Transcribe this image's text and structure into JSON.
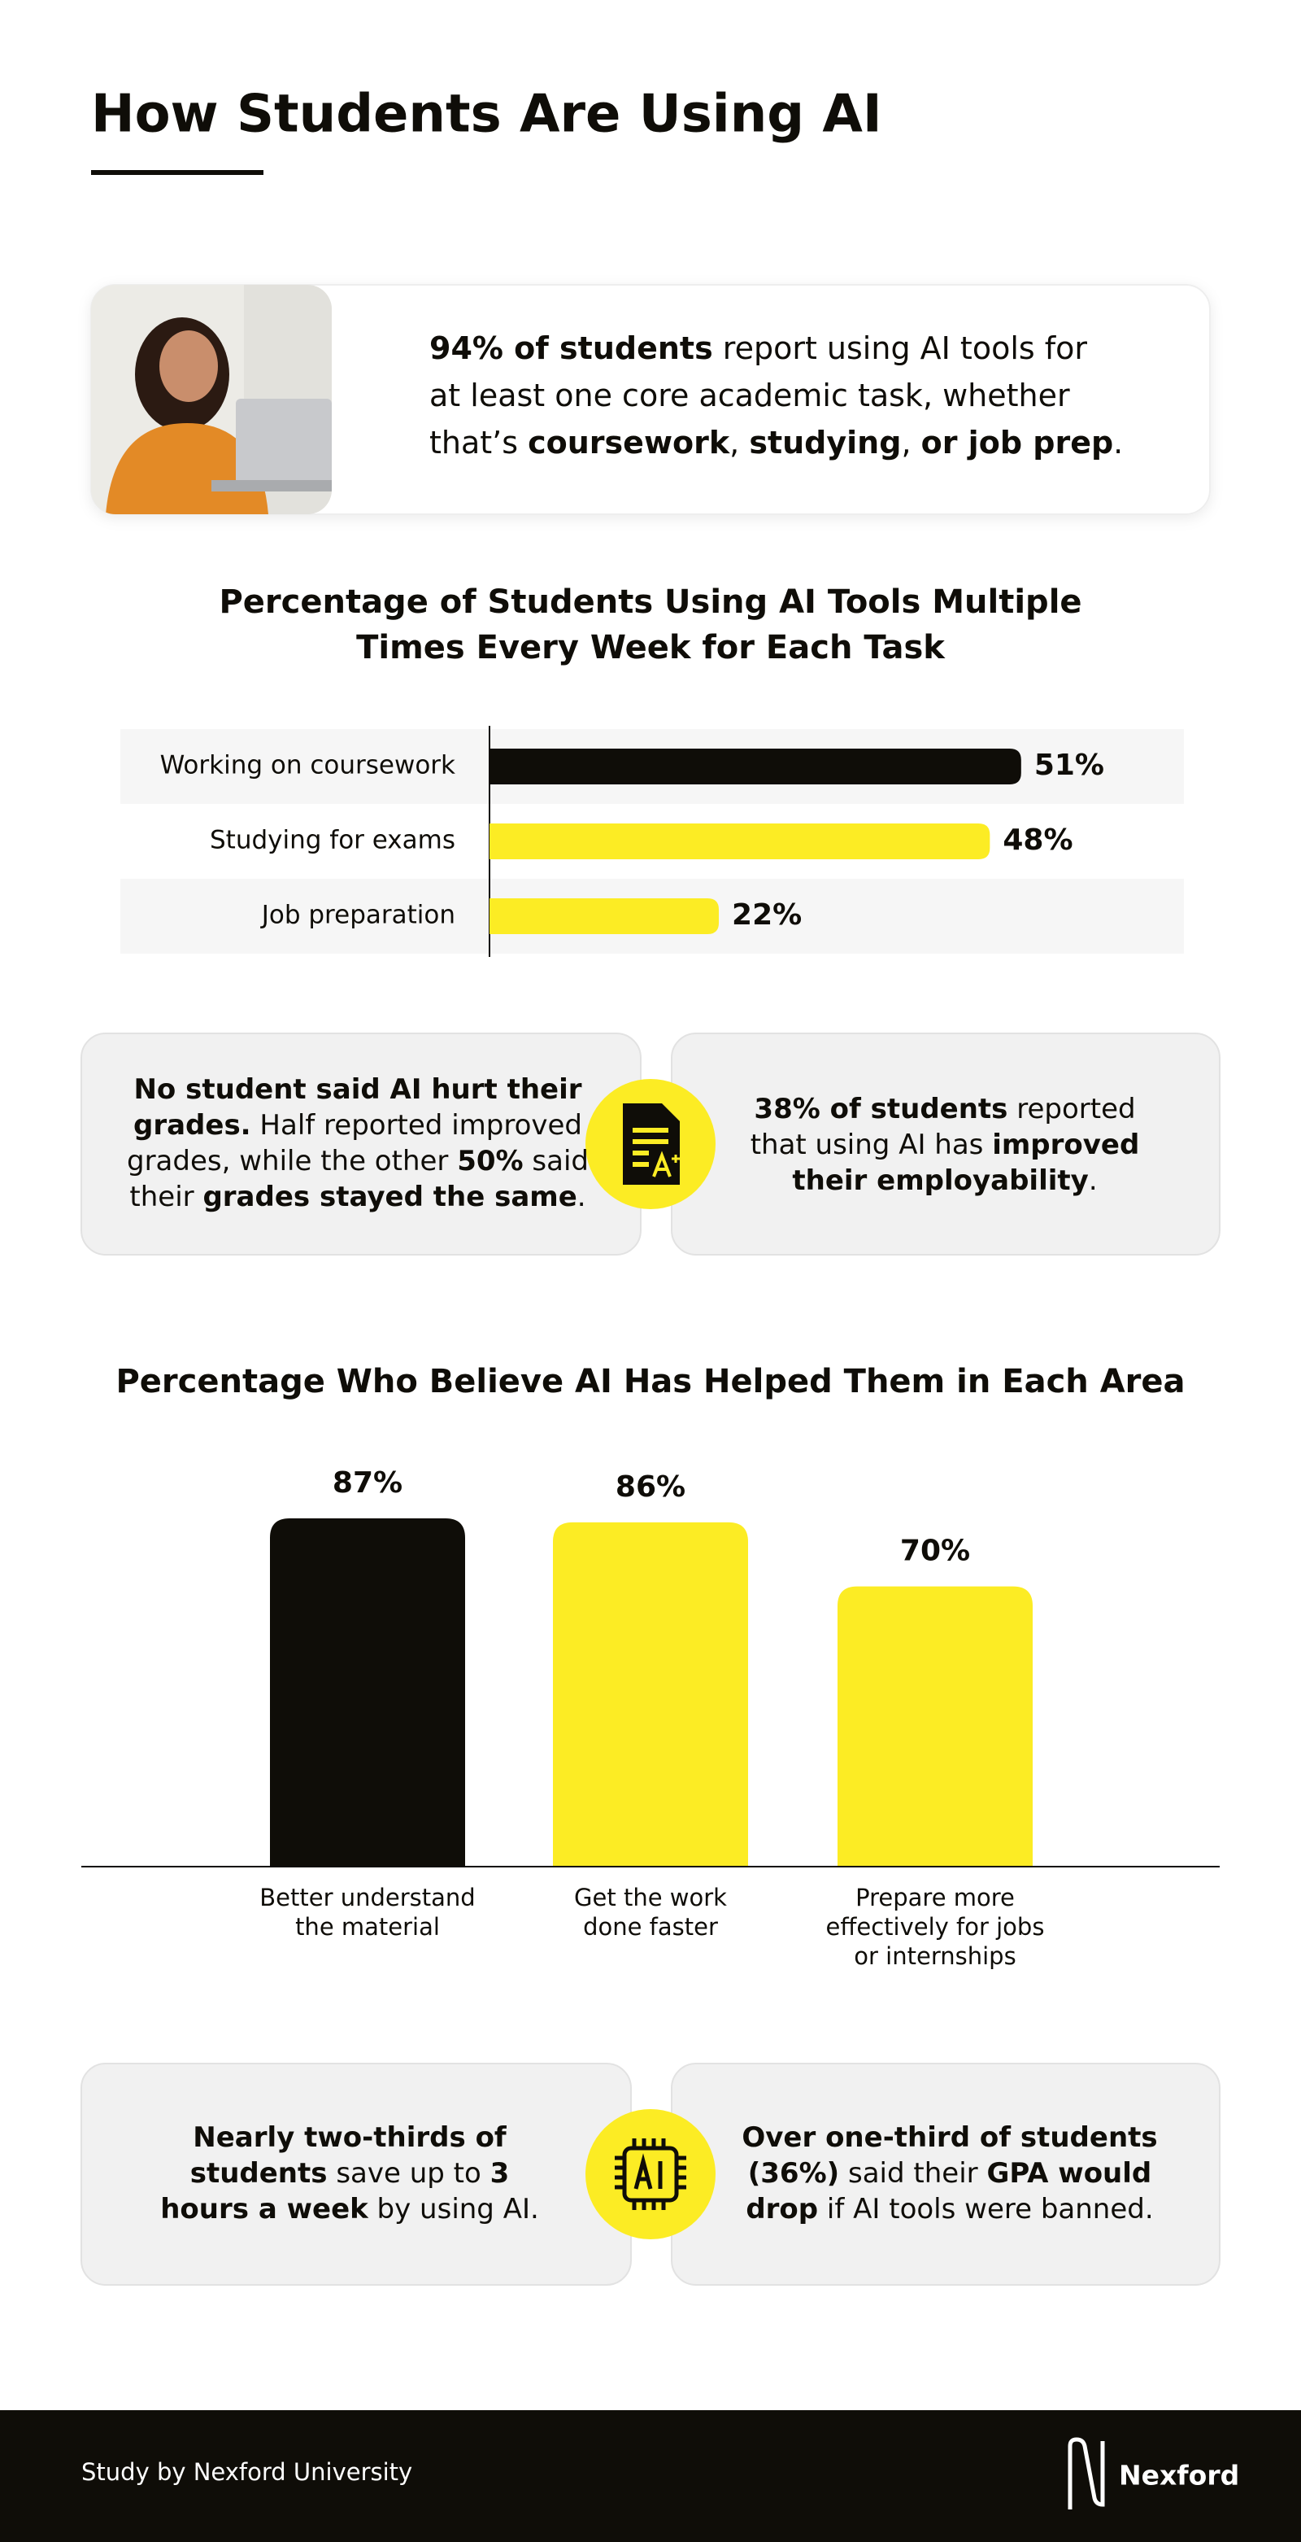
{
  "header": {
    "title": "How Students Are Using AI"
  },
  "intro": {
    "lines": [
      [
        {
          "text": "94% of students",
          "bold": true
        },
        {
          "text": " report using AI tools for",
          "bold": false
        }
      ],
      [
        {
          "text": "at least one core academic task, whether",
          "bold": false
        }
      ],
      [
        {
          "text": "that’s ",
          "bold": false
        },
        {
          "text": "coursework",
          "bold": true
        },
        {
          "text": ", ",
          "bold": false
        },
        {
          "text": "studying",
          "bold": true
        },
        {
          "text": ", ",
          "bold": false
        },
        {
          "text": "or job prep",
          "bold": true
        },
        {
          "text": ".",
          "bold": false
        }
      ]
    ]
  },
  "chart_data": [
    {
      "type": "hbar",
      "title": "Percentage of Students Using AI Tools Multiple\nTimes Every Week for Each Task",
      "categories": [
        "Working on coursework",
        "Studying for exams",
        "Job preparation"
      ],
      "values": [
        51,
        48,
        22
      ],
      "value_labels": [
        "51%",
        "48%",
        "22%"
      ],
      "colors": [
        "#0f0d08",
        "#fcec24",
        "#fcec24"
      ],
      "xlim": [
        0,
        100
      ]
    },
    {
      "type": "bar",
      "title": "Percentage Who Believe AI Has Helped Them in Each Area",
      "categories": [
        "Better understand\nthe material",
        "Get the work\ndone faster",
        "Prepare more\neffectively for jobs\nor internships"
      ],
      "values": [
        87,
        86,
        70
      ],
      "value_labels": [
        "87%",
        "86%",
        "70%"
      ],
      "colors": [
        "#0f0d08",
        "#fcec24",
        "#fcec24"
      ],
      "ylim": [
        0,
        100
      ]
    }
  ],
  "stats": [
    {
      "lines": [
        [
          {
            "text": "No student said AI hurt their",
            "bold": true
          }
        ],
        [
          {
            "text": "grades.",
            "bold": true
          },
          {
            "text": " Half reported improved",
            "bold": false
          }
        ],
        [
          {
            "text": "grades, while the other ",
            "bold": false
          },
          {
            "text": "50%",
            "bold": true
          },
          {
            "text": " said",
            "bold": false
          }
        ],
        [
          {
            "text": "their ",
            "bold": false
          },
          {
            "text": "grades stayed the same",
            "bold": true
          },
          {
            "text": ".",
            "bold": false
          }
        ]
      ]
    },
    {
      "lines": [
        [
          {
            "text": "38% of students",
            "bold": true
          },
          {
            "text": " reported",
            "bold": false
          }
        ],
        [
          {
            "text": "that using AI has ",
            "bold": false
          },
          {
            "text": "improved",
            "bold": true
          }
        ],
        [
          {
            "text": "their employability",
            "bold": true
          },
          {
            "text": ".",
            "bold": false
          }
        ]
      ]
    },
    {
      "lines": [
        [
          {
            "text": "Nearly two-thirds of",
            "bold": true
          }
        ],
        [
          {
            "text": "students",
            "bold": true
          },
          {
            "text": " save up to ",
            "bold": false
          },
          {
            "text": "3",
            "bold": true
          }
        ],
        [
          {
            "text": "hours a week",
            "bold": true
          },
          {
            "text": " by using AI.",
            "bold": false
          }
        ]
      ]
    },
    {
      "lines": [
        [
          {
            "text": "Over one-third of students",
            "bold": true
          }
        ],
        [
          {
            "text": "(36%)",
            "bold": true
          },
          {
            "text": " said their ",
            "bold": false
          },
          {
            "text": "GPA would",
            "bold": true
          }
        ],
        [
          {
            "text": "drop",
            "bold": true
          },
          {
            "text": " if AI tools were banned.",
            "bold": false
          }
        ]
      ]
    }
  ],
  "footer": {
    "credit": "Study by Nexford University",
    "brand": "Nexford"
  }
}
